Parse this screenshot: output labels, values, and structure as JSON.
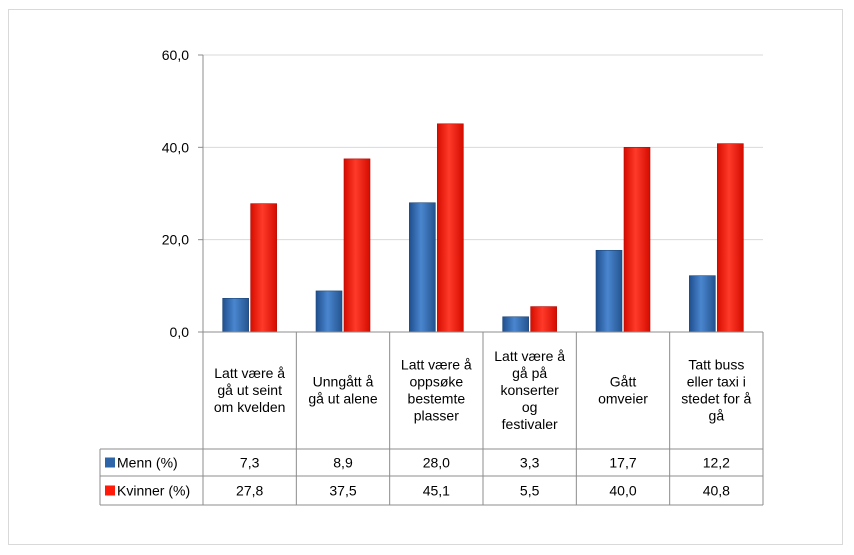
{
  "chart_data": {
    "type": "bar",
    "categories": [
      [
        "Latt være å",
        "gå ut seint",
        "om kvelden"
      ],
      [
        "Unngått å",
        "gå ut alene"
      ],
      [
        "Latt være å",
        "oppsøke",
        "bestemte",
        "plasser"
      ],
      [
        "Latt være å",
        "gå på",
        "konserter",
        "og",
        "festivaler"
      ],
      [
        "Gått",
        "omveier"
      ],
      [
        "Tatt buss",
        "eller taxi i",
        "stedet for å",
        "gå"
      ]
    ],
    "series": [
      {
        "name": "Menn (%)",
        "color": "#2e64a8",
        "values": [
          7.3,
          8.9,
          28.0,
          3.3,
          17.7,
          12.2
        ],
        "labels": [
          "7,3",
          "8,9",
          "28,0",
          "3,3",
          "17,7",
          "12,2"
        ]
      },
      {
        "name": "Kvinner (%)",
        "color": "#ff1a0a",
        "values": [
          27.8,
          37.5,
          45.1,
          5.5,
          40.0,
          40.8
        ],
        "labels": [
          "27,8",
          "37,5",
          "45,1",
          "5,5",
          "40,0",
          "40,8"
        ]
      }
    ],
    "yticks": [
      "0,0",
      "20,0",
      "40,0",
      "60,0"
    ],
    "ylim": [
      0,
      60
    ],
    "grid": true,
    "legend": "data-table"
  }
}
